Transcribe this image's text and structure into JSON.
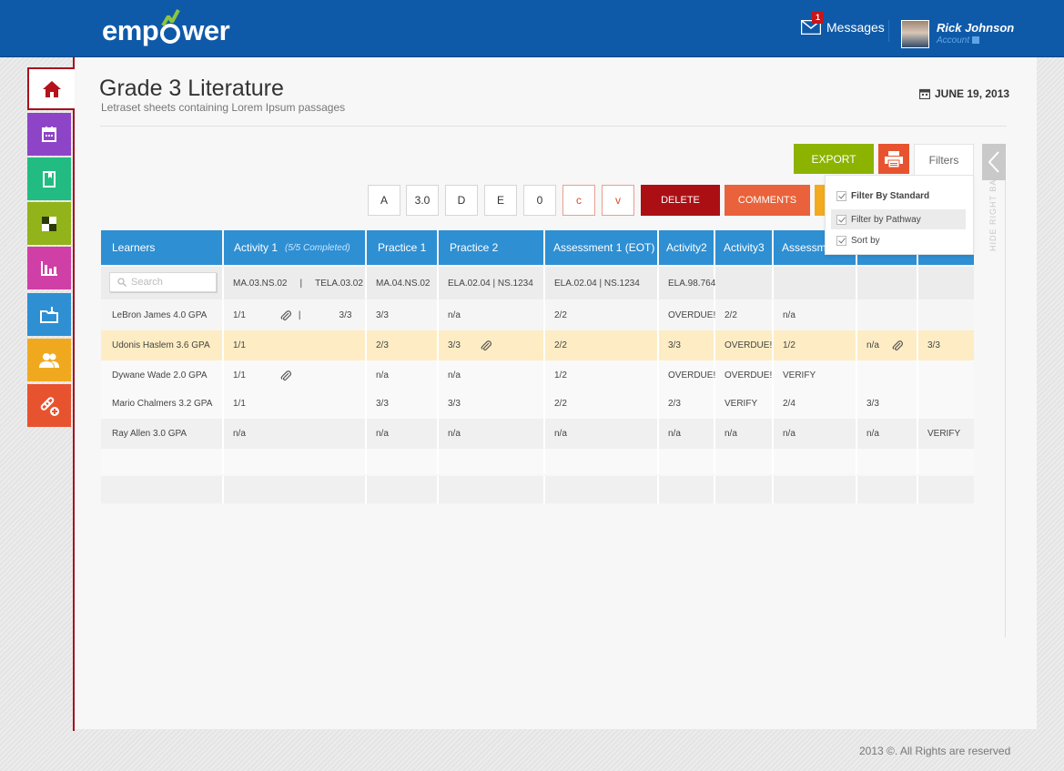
{
  "header": {
    "logo_text_left": "emp",
    "logo_text_right": "wer",
    "messages_label": "Messages",
    "messages_count": "1",
    "user_name": "Rick Johnson",
    "account_label": "Account"
  },
  "sidebar": {
    "items": [
      {
        "icon": "home-icon",
        "color": "#ffffff"
      },
      {
        "icon": "calendar-icon",
        "color": "#8e44c7"
      },
      {
        "icon": "book-icon",
        "color": "#22bc83"
      },
      {
        "icon": "checker-icon",
        "color": "#92b31a"
      },
      {
        "icon": "bar-chart-icon",
        "color": "#cf3fa6"
      },
      {
        "icon": "folder-download-icon",
        "color": "#2e8fd3"
      },
      {
        "icon": "users-icon",
        "color": "#f0a91f"
      },
      {
        "icon": "link-add-icon",
        "color": "#e8532f"
      }
    ]
  },
  "page": {
    "title": "Grade 3 Literature",
    "subtitle": "Letraset sheets containing Lorem Ipsum passages",
    "date": "JUNE 19, 2013"
  },
  "toolbar": {
    "export_label": "EXPORT",
    "filters_label": "Filters",
    "grades": [
      "A",
      "3.0",
      "D",
      "E",
      "0",
      "c",
      "v"
    ],
    "delete_label": "DELETE",
    "comments_label": "COMMENTS",
    "hide_right_bar": "HIDE RIGHT BAR"
  },
  "filters": {
    "options": [
      "Filter By Standard",
      "Filter by Pathway",
      "Sort by"
    ]
  },
  "table": {
    "headers": {
      "learners": "Learners",
      "activity1": "Activity 1",
      "activity1_note": "(5/5 Completed)",
      "practice1": "Practice 1",
      "practice2": "Practice 2",
      "assessment1": "Assessment 1 (EOT)",
      "activity2": "Activity2",
      "activity3": "Activity3",
      "assessment2": "Assessm"
    },
    "search_placeholder": "Search",
    "standards": {
      "act1_a": "MA.03.NS.02",
      "act1_sep": "|",
      "act1_b": "TELA.03.02",
      "prac1": "MA.04.NS.02",
      "prac2": "ELA.02.04  |  NS.1234",
      "assess1": "ELA.02.04  |  NS.1234",
      "act2": "ELA.98.764"
    },
    "rows": [
      {
        "name": "LeBron James 4.0 GPA",
        "act1": "1/1",
        "act1_b": "3/3",
        "prac1": "3/3",
        "prac2": "n/a",
        "assess1": "2/2",
        "act2": "OVERDUE!",
        "act3": "2/2",
        "assess2": "n/a",
        "c9": "",
        "c10": ""
      },
      {
        "name": "Udonis Haslem 3.6 GPA",
        "act1": "1/1",
        "act1_b": "",
        "prac1": "2/3",
        "prac2": "3/3",
        "assess1": "2/2",
        "act2": "3/3",
        "act3": "OVERDUE!",
        "assess2": "1/2",
        "c9": "n/a",
        "c10": "3/3"
      },
      {
        "name": "Dywane Wade 2.0 GPA",
        "act1": "1/1",
        "act1_b": "",
        "prac1": "n/a",
        "prac2": "n/a",
        "assess1": "1/2",
        "act2": "OVERDUE!",
        "act3": "OVERDUE!",
        "assess2": "VERIFY",
        "c9": "",
        "c10": ""
      },
      {
        "name": "Mario Chalmers 3.2 GPA",
        "act1": "1/1",
        "act1_b": "",
        "prac1": "3/3",
        "prac2": "3/3",
        "assess1": "2/2",
        "act2": "2/3",
        "act3": "VERIFY",
        "assess2": "2/4",
        "c9": "3/3",
        "c10": ""
      },
      {
        "name": "Ray Allen 3.0 GPA",
        "act1": "n/a",
        "act1_b": "",
        "prac1": "n/a",
        "prac2": "n/a",
        "assess1": "n/a",
        "act2": "n/a",
        "act3": "n/a",
        "assess2": "n/a",
        "c9": "n/a",
        "c10": "VERIFY"
      }
    ]
  },
  "footer": {
    "copyright": "2013 ©. All Rights are reserved"
  },
  "colors": {
    "header_blue": "#0f5aa8",
    "table_header": "#2e8fd3",
    "highlight_row": "#feedc4",
    "accent_red": "#a7101c",
    "export_green": "#8cb300",
    "print_orange": "#e8532f"
  }
}
